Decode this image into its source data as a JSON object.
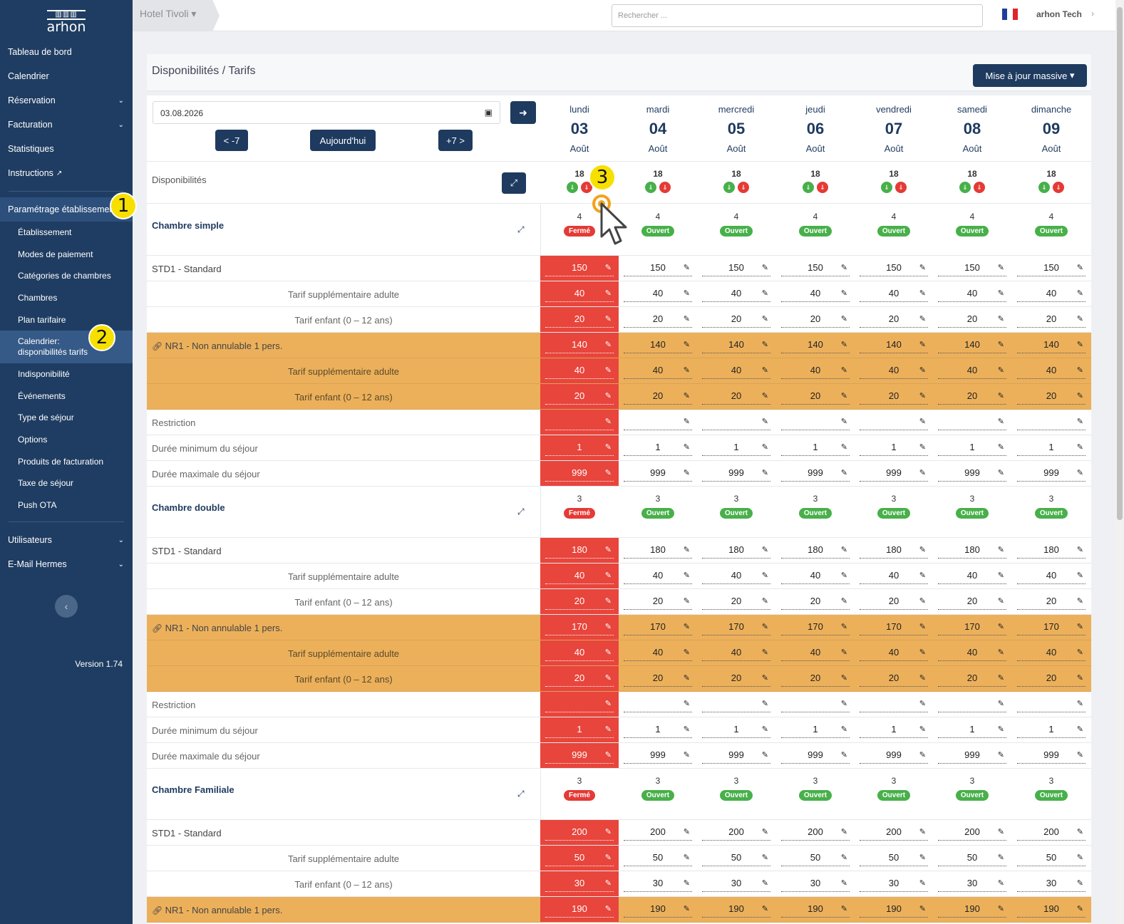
{
  "sidebar": {
    "logo_text": "arhon",
    "items": [
      {
        "label": "Tableau de bord"
      },
      {
        "label": "Calendrier"
      },
      {
        "label": "Réservation",
        "chevron": true
      },
      {
        "label": "Facturation",
        "chevron": true
      },
      {
        "label": "Statistiques"
      },
      {
        "label": "Instructions",
        "external": true
      }
    ],
    "active_section": "Paramétrage établissement",
    "sub_items": [
      "Établissement",
      "Modes de paiement",
      "Catégories de chambres",
      "Chambres",
      "Plan tarifaire",
      "Calendrier: disponibilités tarifs",
      "Indisponibilité",
      "Événements",
      "Type de séjour",
      "Options",
      "Produits de facturation",
      "Taxe de séjour",
      "Push OTA"
    ],
    "bottom_items": [
      {
        "label": "Utilisateurs",
        "chevron": true
      },
      {
        "label": "E-Mail Hermes",
        "chevron": true
      }
    ],
    "version": "Version 1.74"
  },
  "topbar": {
    "hotel": "Hotel Tivoli",
    "search_placeholder": "Rechercher ...",
    "user": "arhon Tech"
  },
  "steps": [
    "1",
    "2",
    "3"
  ],
  "panel": {
    "title": "Disponibilités / Tarifs",
    "mass_update": "Mise à jour massive",
    "date_value": "03.08.2026",
    "prev_label": "< -7",
    "today_label": "Aujourd'hui",
    "next_label": "+7 >",
    "availability_label": "Disponibilités"
  },
  "days": [
    {
      "name": "lundi",
      "num": "03",
      "month": "Août",
      "avail": "18"
    },
    {
      "name": "mardi",
      "num": "04",
      "month": "Août",
      "avail": "18"
    },
    {
      "name": "mercredi",
      "num": "05",
      "month": "Août",
      "avail": "18"
    },
    {
      "name": "jeudi",
      "num": "06",
      "month": "Août",
      "avail": "18"
    },
    {
      "name": "vendredi",
      "num": "07",
      "month": "Août",
      "avail": "18"
    },
    {
      "name": "samedi",
      "num": "08",
      "month": "Août",
      "avail": "18"
    },
    {
      "name": "dimanche",
      "num": "09",
      "month": "Août",
      "avail": "18"
    }
  ],
  "status_labels": {
    "open": "Ouvert",
    "closed": "Fermé"
  },
  "rooms": [
    {
      "name": "Chambre simple",
      "counts": [
        "4",
        "4",
        "4",
        "4",
        "4",
        "4",
        "4"
      ],
      "status": [
        "closed",
        "open",
        "open",
        "open",
        "open",
        "open",
        "open"
      ],
      "rows": [
        {
          "label": "STD1 - Standard",
          "type": "plain",
          "values": [
            "150",
            "150",
            "150",
            "150",
            "150",
            "150",
            "150"
          ]
        },
        {
          "label": "Tarif supplémentaire adulte",
          "type": "sub",
          "values": [
            "40",
            "40",
            "40",
            "40",
            "40",
            "40",
            "40"
          ]
        },
        {
          "label": "Tarif enfant (0 – 12 ans)",
          "type": "sub",
          "values": [
            "20",
            "20",
            "20",
            "20",
            "20",
            "20",
            "20"
          ]
        },
        {
          "label": "NR1 - Non annulable 1 pers.",
          "type": "orange-link",
          "values": [
            "140",
            "140",
            "140",
            "140",
            "140",
            "140",
            "140"
          ]
        },
        {
          "label": "Tarif supplémentaire adulte",
          "type": "orange-sub",
          "values": [
            "40",
            "40",
            "40",
            "40",
            "40",
            "40",
            "40"
          ]
        },
        {
          "label": "Tarif enfant (0 – 12 ans)",
          "type": "orange-sub",
          "values": [
            "20",
            "20",
            "20",
            "20",
            "20",
            "20",
            "20"
          ]
        },
        {
          "label": "Restriction",
          "type": "plain-muted",
          "values": [
            "",
            "",
            "",
            "",
            "",
            "",
            ""
          ]
        },
        {
          "label": "Durée minimum du séjour",
          "type": "plain-muted",
          "values": [
            "1",
            "1",
            "1",
            "1",
            "1",
            "1",
            "1"
          ]
        },
        {
          "label": "Durée maximale du séjour",
          "type": "plain-muted",
          "values": [
            "999",
            "999",
            "999",
            "999",
            "999",
            "999",
            "999"
          ]
        }
      ]
    },
    {
      "name": "Chambre double",
      "counts": [
        "3",
        "3",
        "3",
        "3",
        "3",
        "3",
        "3"
      ],
      "status": [
        "closed",
        "open",
        "open",
        "open",
        "open",
        "open",
        "open"
      ],
      "rows": [
        {
          "label": "STD1 - Standard",
          "type": "plain",
          "values": [
            "180",
            "180",
            "180",
            "180",
            "180",
            "180",
            "180"
          ]
        },
        {
          "label": "Tarif supplémentaire adulte",
          "type": "sub",
          "values": [
            "40",
            "40",
            "40",
            "40",
            "40",
            "40",
            "40"
          ]
        },
        {
          "label": "Tarif enfant (0 – 12 ans)",
          "type": "sub",
          "values": [
            "20",
            "20",
            "20",
            "20",
            "20",
            "20",
            "20"
          ]
        },
        {
          "label": "NR1 - Non annulable 1 pers.",
          "type": "orange-link",
          "values": [
            "170",
            "170",
            "170",
            "170",
            "170",
            "170",
            "170"
          ]
        },
        {
          "label": "Tarif supplémentaire adulte",
          "type": "orange-sub",
          "values": [
            "40",
            "40",
            "40",
            "40",
            "40",
            "40",
            "40"
          ]
        },
        {
          "label": "Tarif enfant (0 – 12 ans)",
          "type": "orange-sub",
          "values": [
            "20",
            "20",
            "20",
            "20",
            "20",
            "20",
            "20"
          ]
        },
        {
          "label": "Restriction",
          "type": "plain-muted",
          "values": [
            "",
            "",
            "",
            "",
            "",
            "",
            ""
          ]
        },
        {
          "label": "Durée minimum du séjour",
          "type": "plain-muted",
          "values": [
            "1",
            "1",
            "1",
            "1",
            "1",
            "1",
            "1"
          ]
        },
        {
          "label": "Durée maximale du séjour",
          "type": "plain-muted",
          "values": [
            "999",
            "999",
            "999",
            "999",
            "999",
            "999",
            "999"
          ]
        }
      ]
    },
    {
      "name": "Chambre Familiale",
      "counts": [
        "3",
        "3",
        "3",
        "3",
        "3",
        "3",
        "3"
      ],
      "status": [
        "closed",
        "open",
        "open",
        "open",
        "open",
        "open",
        "open"
      ],
      "rows": [
        {
          "label": "STD1 - Standard",
          "type": "plain",
          "values": [
            "200",
            "200",
            "200",
            "200",
            "200",
            "200",
            "200"
          ]
        },
        {
          "label": "Tarif supplémentaire adulte",
          "type": "sub",
          "values": [
            "50",
            "50",
            "50",
            "50",
            "50",
            "50",
            "50"
          ]
        },
        {
          "label": "Tarif enfant (0 – 12 ans)",
          "type": "sub",
          "values": [
            "30",
            "30",
            "30",
            "30",
            "30",
            "30",
            "30"
          ]
        },
        {
          "label": "NR1 - Non annulable 1 pers.",
          "type": "orange-link",
          "values": [
            "190",
            "190",
            "190",
            "190",
            "190",
            "190",
            "190"
          ]
        }
      ]
    }
  ]
}
